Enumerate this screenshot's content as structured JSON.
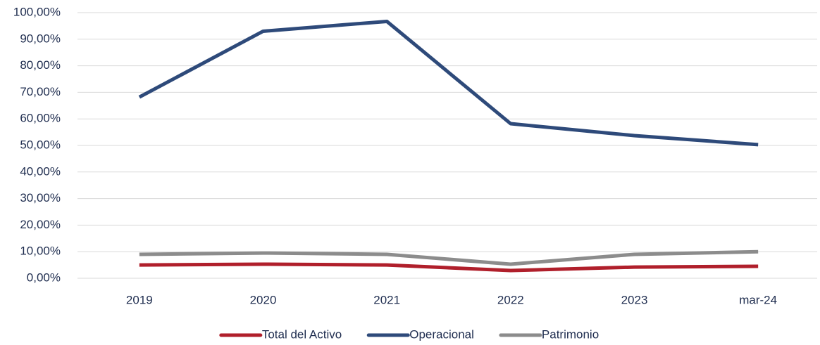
{
  "chart_data": {
    "type": "line",
    "categories": [
      "2019",
      "2020",
      "2021",
      "2022",
      "2023",
      "mar-24"
    ],
    "series": [
      {
        "name": "Total del Activo",
        "color": "#b01f2b",
        "values": [
          5.0,
          5.3,
          5.0,
          2.9,
          4.2,
          4.5
        ]
      },
      {
        "name": "Operacional",
        "color": "#2e4a7a",
        "values": [
          68.2,
          93.0,
          96.7,
          58.2,
          53.7,
          50.3
        ]
      },
      {
        "name": "Patrimonio",
        "color": "#8c8c8c",
        "values": [
          9.0,
          9.5,
          9.0,
          5.3,
          9.0,
          10.0
        ]
      }
    ],
    "ylim": [
      0,
      100
    ],
    "yticks": [
      {
        "value": 0,
        "label": "0,00%"
      },
      {
        "value": 10,
        "label": "10,00%"
      },
      {
        "value": 20,
        "label": "20,00%"
      },
      {
        "value": 30,
        "label": "30,00%"
      },
      {
        "value": 40,
        "label": "40,00%"
      },
      {
        "value": 50,
        "label": "50,00%"
      },
      {
        "value": 60,
        "label": "60,00%"
      },
      {
        "value": 70,
        "label": "70,00%"
      },
      {
        "value": 80,
        "label": "80,00%"
      },
      {
        "value": 90,
        "label": "90,00%"
      },
      {
        "value": 100,
        "label": "100,00%"
      }
    ],
    "grid": true,
    "legend": "bottom"
  }
}
